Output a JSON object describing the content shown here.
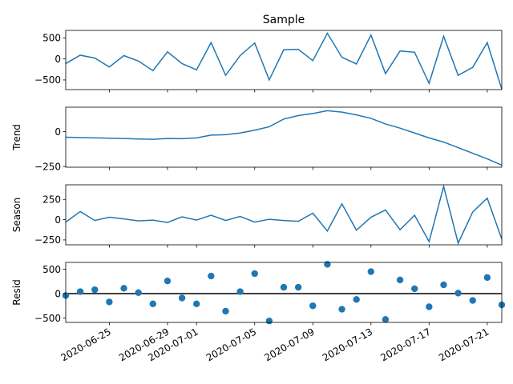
{
  "chart_data": {
    "type": "line",
    "title": "Sample",
    "x_dates": [
      "2020-06-22",
      "2020-06-23",
      "2020-06-24",
      "2020-06-25",
      "2020-06-26",
      "2020-06-27",
      "2020-06-28",
      "2020-06-29",
      "2020-06-30",
      "2020-07-01",
      "2020-07-02",
      "2020-07-03",
      "2020-07-04",
      "2020-07-05",
      "2020-07-06",
      "2020-07-07",
      "2020-07-08",
      "2020-07-09",
      "2020-07-10",
      "2020-07-11",
      "2020-07-12",
      "2020-07-13",
      "2020-07-14",
      "2020-07-15",
      "2020-07-16",
      "2020-07-17",
      "2020-07-18",
      "2020-07-19",
      "2020-07-20",
      "2020-07-21",
      "2020-07-22"
    ],
    "x_ticks": [
      "2020-06-25",
      "2020-06-29",
      "2020-07-01",
      "2020-07-05",
      "2020-07-09",
      "2020-07-13",
      "2020-07-17",
      "2020-07-21"
    ],
    "color": "#1f77b4",
    "panels": [
      {
        "ylabel": "",
        "kind": "line",
        "ylim": [
          -730,
          680
        ],
        "yticks": [
          500,
          0,
          -500
        ],
        "values": [
          -110,
          90,
          20,
          -190,
          80,
          -50,
          -280,
          170,
          -110,
          -260,
          390,
          -390,
          80,
          380,
          -500,
          220,
          230,
          -40,
          610,
          40,
          -120,
          570,
          -350,
          190,
          160,
          -580,
          540,
          -390,
          -200,
          390,
          -720
        ]
      },
      {
        "ylabel": "Trend",
        "kind": "line",
        "ylim": [
          -255,
          175
        ],
        "yticks": [
          0,
          -250
        ],
        "values": [
          -40,
          -43,
          -45,
          -47,
          -49,
          -53,
          -55,
          -49,
          -51,
          -45,
          -25,
          -22,
          -10,
          10,
          35,
          90,
          115,
          130,
          150,
          140,
          120,
          95,
          55,
          25,
          -10,
          -45,
          -75,
          -115,
          -155,
          -195,
          -240
        ]
      },
      {
        "ylabel": "Season",
        "kind": "line",
        "ylim": [
          -310,
          430
        ],
        "yticks": [
          250,
          0,
          -250
        ],
        "values": [
          -30,
          100,
          -10,
          30,
          10,
          -15,
          -5,
          -35,
          35,
          -5,
          55,
          -10,
          40,
          -30,
          5,
          -10,
          -20,
          80,
          -140,
          195,
          -130,
          30,
          120,
          -125,
          55,
          -270,
          410,
          -290,
          95,
          265,
          -240
        ]
      },
      {
        "ylabel": "Resid",
        "kind": "scatter",
        "ylim": [
          -590,
          640
        ],
        "yticks": [
          500,
          0,
          -500
        ],
        "values": [
          -40,
          40,
          80,
          -170,
          110,
          20,
          -210,
          260,
          -90,
          -210,
          360,
          -360,
          40,
          410,
          -560,
          130,
          130,
          -250,
          600,
          -320,
          -120,
          450,
          -530,
          280,
          100,
          -270,
          180,
          10,
          -140,
          330,
          -230
        ]
      }
    ]
  }
}
